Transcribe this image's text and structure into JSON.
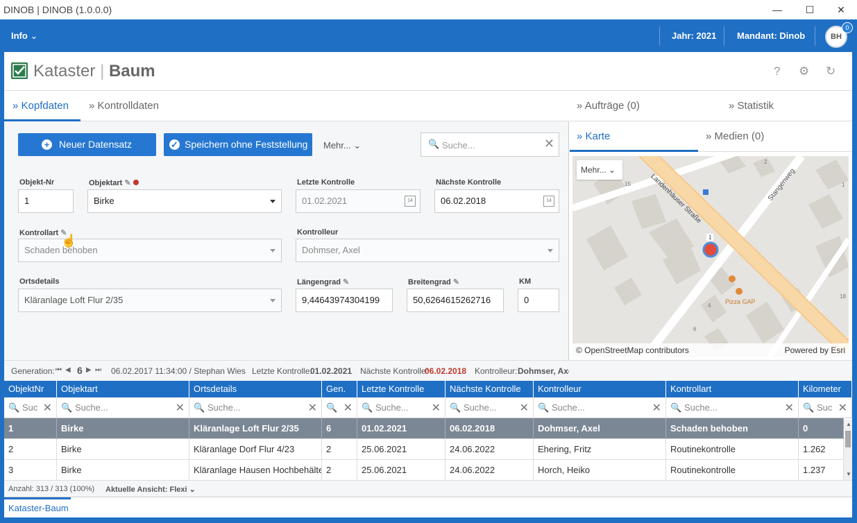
{
  "window": {
    "title": "DINOB | DINOB (1.0.0.0)",
    "minimize": "—",
    "maximize": "☐",
    "close": "✕"
  },
  "appbar": {
    "info_label": "Info",
    "jahr": "Jahr: 2021",
    "mandant": "Mandant: Dinob",
    "user_initials": "BH",
    "notification_count": "0"
  },
  "header": {
    "title_part1": "Kataster",
    "title_sep": "|",
    "title_part2": "Baum",
    "help": "?",
    "gear": "⚙",
    "refresh": "↻"
  },
  "tabs": {
    "kopfdaten": "Kopfdaten",
    "kontrolldaten": "Kontrolldaten",
    "chevron": "»"
  },
  "toolbar": {
    "new_button": "Neuer Datensatz",
    "save_button": "Speichern ohne Feststellung",
    "more": "Mehr...",
    "search_placeholder": "Suche..."
  },
  "form": {
    "objekt_nr_label": "Objekt-Nr",
    "objekt_nr": "1",
    "objektart_label": "Objektart",
    "objektart": "Birke",
    "letzte_kontrolle_label": "Letzte Kontrolle",
    "letzte_kontrolle": "01.02.2021",
    "naechste_kontrolle_label": "Nächste Kontrolle",
    "naechste_kontrolle": "06.02.2018",
    "kontrollart_label": "Kontrollart",
    "kontrollart": "Schaden behoben",
    "kontrolleur_label": "Kontrolleur",
    "kontrolleur": "Dohmser, Axel",
    "ortsdetails_label": "Ortsdetails",
    "ortsdetails": "Kläranlage Loft  Flur 2/35",
    "laengengrad_label": "Längengrad",
    "laengengrad": "9,44643974304199",
    "breitengrad_label": "Breitengrad",
    "breitengrad": "50,6264615262716",
    "km_label": "KM",
    "km": "0",
    "calendar_day": "14"
  },
  "rightpane": {
    "auftraege": "Aufträge (0)",
    "statistik": "Statistik",
    "karte": "Karte",
    "medien": "Medien (0)",
    "map_more": "Mehr...",
    "map_attribution": "© OpenStreetMap contributors",
    "map_powered": "Powered by Esri",
    "street1": "Landenhäuser Straße",
    "street2": "Stangenweg",
    "poi": "Pizza GAP",
    "house_numbers": [
      "15",
      "2",
      "1",
      "4",
      "6",
      "18",
      "1"
    ]
  },
  "statusline": {
    "generation_label": "Generation:",
    "generation": "6",
    "generation_info": "06.02.2017 11:34:00 / Stephan Wies",
    "letzte_label": "Letzte Kontrolle:",
    "letzte": "01.02.2021",
    "naechste_label": "Nächste Kontrolle:",
    "naechste": "06.02.2018",
    "kontrolleur_label": "Kontrolleur:",
    "kontrolleur": "Dohmser, Axel"
  },
  "table": {
    "columns": [
      "ObjektNr",
      "Objektart",
      "Ortsdetails",
      "Gen.",
      "Letzte Kontrolle",
      "Nächste Kontrolle",
      "Kontrolleur",
      "Kontrollart",
      "Kilometer"
    ],
    "filter_placeholders": [
      "Suc",
      "Suche...",
      "Suche...",
      "",
      "Suche...",
      "Suche...",
      "Suche...",
      "Suche...",
      "Suc"
    ],
    "rows": [
      [
        "1",
        "Birke",
        "Kläranlage Loft  Flur 2/35",
        "6",
        "01.02.2021",
        "06.02.2018",
        "Dohmser, Axel",
        "Schaden behoben",
        "0"
      ],
      [
        "2",
        "Birke",
        "Kläranlage Dorf  Flur 4/23",
        "2",
        "25.06.2021",
        "24.06.2022",
        "Ehering, Fritz",
        "Routinekontrolle",
        "1.262"
      ],
      [
        "3",
        "Birke",
        "Kläranlage Hausen  Hochbehälter",
        "2",
        "25.06.2021",
        "24.06.2022",
        "Horch, Heiko",
        "Routinekontrolle",
        "1.237"
      ]
    ]
  },
  "footer": {
    "count": "Anzahl: 313 / 313 (100%)",
    "view": "Aktuelle Ansicht: Flexi",
    "tab": "Kataster-Baum"
  },
  "colors": {
    "primary": "#1f6fc4",
    "selected_row": "#7b8794",
    "red": "#c0392b"
  }
}
